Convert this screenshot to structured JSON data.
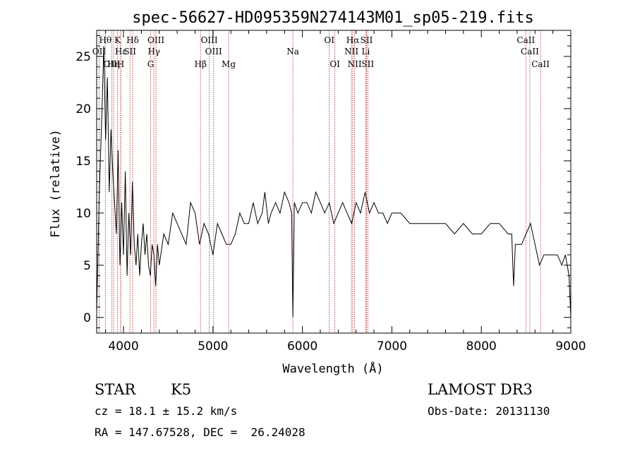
{
  "chart_data": {
    "type": "line",
    "title": "spec-56627-HD095359N274143M01_sp05-219.fits",
    "xlabel": "Wavelength (Å)",
    "ylabel": "Flux (relative)",
    "xlim": [
      3700,
      9000
    ],
    "ylim": [
      -1.5,
      27.5
    ],
    "x_ticks": [
      4000,
      5000,
      6000,
      7000,
      8000,
      9000
    ],
    "y_ticks": [
      0,
      5,
      10,
      15,
      20,
      25
    ],
    "grid": false,
    "line_color": "#000000",
    "marker_color": "#b22222",
    "spectral_lines": [
      {
        "label": "Hθ",
        "wavelength": 3797,
        "row": 0
      },
      {
        "label": "K",
        "wavelength": 3934,
        "row": 0
      },
      {
        "label": "Hδ",
        "wavelength": 4102,
        "row": 0
      },
      {
        "label": "OIII",
        "wavelength": 4363,
        "row": 0
      },
      {
        "label": "OIII",
        "wavelength": 4959,
        "row": 0
      },
      {
        "label": "OI",
        "wavelength": 6300,
        "row": 0
      },
      {
        "label": "Hα",
        "wavelength": 6563,
        "row": 0
      },
      {
        "label": "SII",
        "wavelength": 6717,
        "row": 0
      },
      {
        "label": "CaII",
        "wavelength": 8498,
        "row": 0
      },
      {
        "label": "OII",
        "wavelength": 3727,
        "row": 1
      },
      {
        "label": "Hε",
        "wavelength": 3970,
        "row": 1
      },
      {
        "label": "SII",
        "wavelength": 4072,
        "row": 1
      },
      {
        "label": "Hγ",
        "wavelength": 4340,
        "row": 1
      },
      {
        "label": "OIII",
        "wavelength": 5007,
        "row": 1
      },
      {
        "label": "Na",
        "wavelength": 5893,
        "row": 1
      },
      {
        "label": "NII",
        "wavelength": 6548,
        "row": 1
      },
      {
        "label": "Li",
        "wavelength": 6708,
        "row": 1
      },
      {
        "label": "CaII",
        "wavelength": 8542,
        "row": 1
      },
      {
        "label": "OIII",
        "wavelength": 3869,
        "row": 2
      },
      {
        "label": "Hη",
        "wavelength": 3889,
        "row": 2
      },
      {
        "label": "H",
        "wavelength": 3968,
        "row": 2
      },
      {
        "label": "G",
        "wavelength": 4304,
        "row": 2
      },
      {
        "label": "Hβ",
        "wavelength": 4861,
        "row": 2
      },
      {
        "label": "Mg",
        "wavelength": 5175,
        "row": 2
      },
      {
        "label": "OI",
        "wavelength": 6363,
        "row": 2
      },
      {
        "label": "NII",
        "wavelength": 6584,
        "row": 2
      },
      {
        "label": "SII",
        "wavelength": 6731,
        "row": 2
      },
      {
        "label": "CaII",
        "wavelength": 8662,
        "row": 2
      }
    ],
    "series": [
      {
        "x": [
          3700,
          3730,
          3760,
          3780,
          3800,
          3820,
          3840,
          3860,
          3880,
          3900,
          3920,
          3940,
          3960,
          3980,
          4000,
          4020,
          4040,
          4060,
          4080,
          4100,
          4120,
          4140,
          4160,
          4180,
          4200,
          4220,
          4240,
          4260,
          4280,
          4300,
          4320,
          4340,
          4360,
          4380,
          4400,
          4450,
          4500,
          4550,
          4600,
          4650,
          4700,
          4750,
          4800,
          4850,
          4900,
          4950,
          5000,
          5050,
          5100,
          5150,
          5200,
          5250,
          5300,
          5350,
          5400,
          5450,
          5500,
          5550,
          5580,
          5620,
          5650,
          5700,
          5750,
          5800,
          5850,
          5880,
          5893,
          5910,
          5950,
          6000,
          6050,
          6100,
          6150,
          6200,
          6250,
          6300,
          6350,
          6400,
          6450,
          6500,
          6550,
          6600,
          6650,
          6700,
          6750,
          6800,
          6850,
          6900,
          6950,
          7000,
          7100,
          7200,
          7300,
          7400,
          7500,
          7600,
          7700,
          7800,
          7900,
          8000,
          8100,
          8200,
          8300,
          8340,
          8360,
          8380,
          8400,
          8450,
          8500,
          8550,
          8600,
          8650,
          8700,
          8750,
          8800,
          8850,
          8900,
          8940,
          8960,
          8980,
          9000
        ],
        "y": [
          0.5,
          12,
          20,
          26,
          17,
          23,
          12,
          18,
          14,
          11,
          8,
          16,
          5,
          11,
          6,
          14,
          4,
          10,
          6,
          13,
          7,
          5,
          8,
          4,
          7,
          9,
          6,
          8,
          5,
          4,
          7,
          6,
          3,
          7,
          5,
          8,
          7,
          10,
          9,
          8,
          7,
          11,
          10,
          7,
          9,
          8,
          6,
          9,
          8,
          7,
          7,
          8,
          10,
          9,
          9,
          11,
          9,
          10,
          12,
          9,
          10,
          11,
          10,
          12,
          11,
          10,
          0,
          11,
          10,
          11,
          11,
          10,
          12,
          11,
          10,
          11,
          9,
          10,
          11,
          10,
          9,
          11,
          10,
          12,
          10,
          11,
          10,
          10,
          9,
          10,
          10,
          9,
          9,
          9,
          9,
          9,
          8,
          9,
          8,
          8,
          9,
          9,
          8,
          8,
          3,
          7,
          7,
          7,
          8,
          9,
          7,
          5,
          6,
          6,
          6,
          6,
          5,
          6,
          5,
          4,
          0
        ]
      }
    ]
  },
  "info": {
    "object_class": "STAR",
    "subclass": "K5",
    "survey": "LAMOST DR3",
    "redshift": "cz = 18.1 ± 15.2 km/s",
    "obs_date": "Obs-Date: 20131130",
    "coords": "RA = 147.67528, DEC =  26.24028"
  }
}
